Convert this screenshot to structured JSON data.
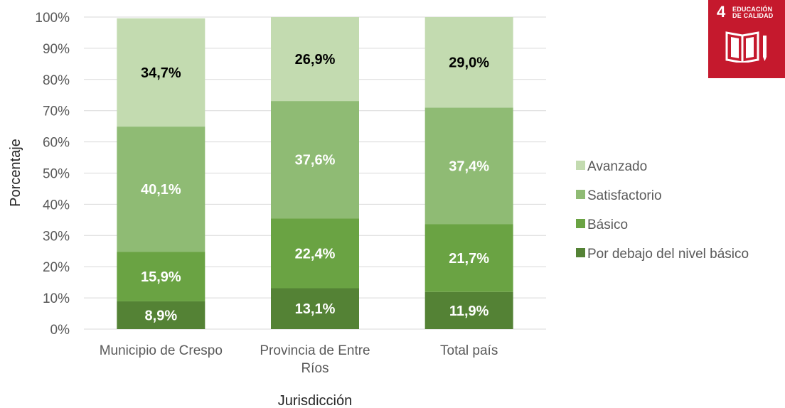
{
  "chart_data": {
    "type": "stacked-bar",
    "title": "",
    "xlabel": "Jurisdicción",
    "ylabel": "Porcentaje",
    "ylim": [
      0,
      100
    ],
    "yticks": [
      "0%",
      "10%",
      "20%",
      "30%",
      "40%",
      "50%",
      "60%",
      "70%",
      "80%",
      "90%",
      "100%"
    ],
    "grid": true,
    "legend_position": "right",
    "categories": [
      [
        "Municipio de Crespo"
      ],
      [
        "Provincia de Entre",
        "Ríos"
      ],
      [
        "Total país"
      ]
    ],
    "series": [
      {
        "name": "Por debajo del nivel básico",
        "color": "#548235",
        "label_color": "#ffffff",
        "values": [
          8.9,
          13.1,
          11.9
        ],
        "labels": [
          "8,9%",
          "13,1%",
          "11,9%"
        ]
      },
      {
        "name": "Básico",
        "color": "#6aa343",
        "label_color": "#ffffff",
        "values": [
          15.9,
          22.4,
          21.7
        ],
        "labels": [
          "15,9%",
          "22,4%",
          "21,7%"
        ]
      },
      {
        "name": "Satisfactorio",
        "color": "#8fbb74",
        "label_color": "#ffffff",
        "values": [
          40.1,
          37.6,
          37.4
        ],
        "labels": [
          "40,1%",
          "37,6%",
          "37,4%"
        ]
      },
      {
        "name": "Avanzado",
        "color": "#c3dbb0",
        "label_color": "#000000",
        "values": [
          34.7,
          26.9,
          29.0
        ],
        "labels": [
          "34,7%",
          "26,9%",
          "29,0%"
        ]
      }
    ]
  },
  "badge": {
    "number": "4",
    "line1": "EDUCACIÓN",
    "line2": "DE CALIDAD",
    "icon": "book-pencil-icon",
    "color": "#c5192d"
  }
}
